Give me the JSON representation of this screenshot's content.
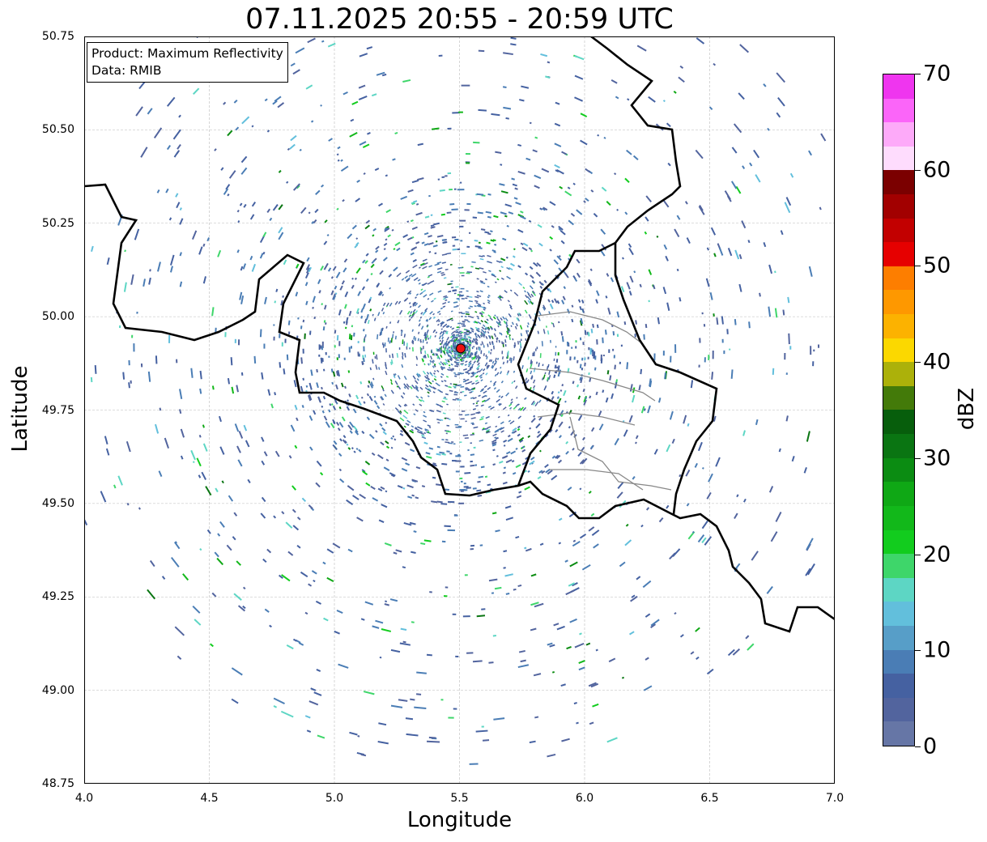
{
  "title": "07.11.2025 20:55 - 20:59 UTC",
  "legend": {
    "product": "Product: Maximum Reflectivity",
    "data": "Data: RMIB"
  },
  "axes": {
    "xlabel": "Longitude",
    "ylabel": "Latitude",
    "xticks": [
      "4.0",
      "4.5",
      "5.0",
      "5.5",
      "6.0",
      "6.5",
      "7.0"
    ],
    "yticks": [
      "50.75",
      "50.50",
      "50.25",
      "50.00",
      "49.75",
      "49.50",
      "49.25",
      "49.00",
      "48.75"
    ],
    "xlim": [
      4.0,
      7.0
    ],
    "ylim": [
      48.75,
      50.75
    ]
  },
  "radar_site": {
    "lon": 5.505,
    "lat": 49.915,
    "color": "#ee1111"
  },
  "colorbar": {
    "label": "dBZ",
    "ticks": [
      "0",
      "10",
      "20",
      "30",
      "40",
      "50",
      "60",
      "70"
    ],
    "range": [
      0,
      70
    ],
    "step": 2.5,
    "colors": [
      "#6676a6",
      "#52649e",
      "#4561a1",
      "#4a7db5",
      "#579ec8",
      "#62bfdc",
      "#5dd6c4",
      "#3ed66a",
      "#12cc1e",
      "#12b81a",
      "#0fa815",
      "#0b8c12",
      "#0a7512",
      "#075e0c",
      "#437a09",
      "#acb10a",
      "#fbd800",
      "#fcb200",
      "#fe9800",
      "#fd7e00",
      "#e60000",
      "#c20000",
      "#a20000",
      "#7b0000",
      "#fedcfd",
      "#fdaaf9",
      "#fb65f9",
      "#ef35ef"
    ]
  }
}
